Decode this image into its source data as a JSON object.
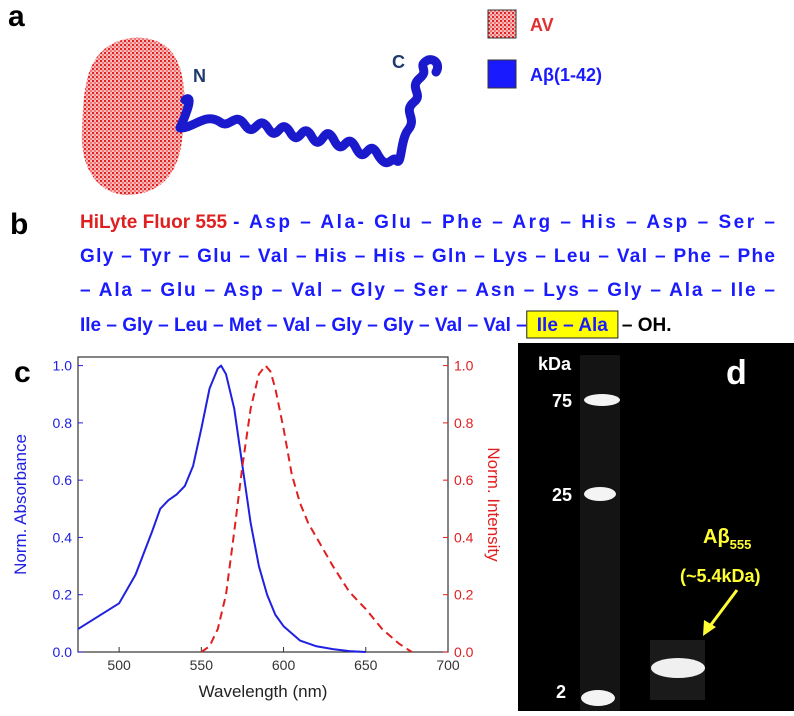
{
  "panels": {
    "a": "a",
    "b": "b",
    "c": "c",
    "d": "d"
  },
  "structure": {
    "n_label": "N",
    "c_label": "C",
    "legend": [
      {
        "label": "AV",
        "color": "#e03030"
      },
      {
        "label": "Aβ(1-42)",
        "color": "#1a1aff"
      }
    ]
  },
  "sequence": {
    "dye": "HiLyte Fluor 555",
    "lines": [
      "- Asp – Ala- Glu – Phe – Arg – His – Asp – Ser –",
      "Gly – Tyr – Glu – Val – His – His – Gln – Lys – Leu – Val – Phe – Phe",
      "– Ala – Glu – Asp – Val – Gly – Ser – Asn – Lys – Gly – Ala – Ile –",
      "Ile – Gly – Leu – Met – Val – Gly – Gly – Val – Val –"
    ],
    "highlight": "Ile – Ala",
    "end": "– OH."
  },
  "chart_data": {
    "type": "line",
    "xlabel": "Wavelength (nm)",
    "ylabel": "Norm. Absorbance",
    "y2label": "Norm. Intensity",
    "xlim": [
      475,
      700
    ],
    "xticks": [
      500,
      550,
      600,
      650,
      700
    ],
    "ylim": [
      0,
      1.03
    ],
    "yticks": [
      {
        "value": 0,
        "label": "0.0"
      },
      {
        "value": 0.2,
        "label": "0.2"
      },
      {
        "value": 0.4,
        "label": "0.4"
      },
      {
        "value": 0.6,
        "label": "0.6"
      },
      {
        "value": 0.8,
        "label": "0.8"
      },
      {
        "value": 1,
        "label": "1.0"
      }
    ],
    "y2lim": [
      0,
      1.03
    ],
    "y2ticks": [
      {
        "value": 0,
        "label": "0.0"
      },
      {
        "value": 0.2,
        "label": "0.2"
      },
      {
        "value": 0.4,
        "label": "0.4"
      },
      {
        "value": 0.6,
        "label": "0.6"
      },
      {
        "value": 0.8,
        "label": "0.8"
      },
      {
        "value": 1,
        "label": "1.0"
      }
    ],
    "ycolor": "#2020e0",
    "y2color": "#e02020",
    "series": [
      {
        "color": "#2020e0",
        "dashed": false,
        "x": [
          475,
          500,
          510,
          520,
          525,
          530,
          535,
          540,
          545,
          550,
          555,
          560,
          562,
          565,
          570,
          575,
          580,
          585,
          590,
          595,
          600,
          610,
          620,
          630,
          640,
          650
        ],
        "values": [
          0.08,
          0.17,
          0.27,
          0.42,
          0.5,
          0.53,
          0.55,
          0.58,
          0.65,
          0.78,
          0.92,
          0.99,
          1.0,
          0.97,
          0.85,
          0.65,
          0.45,
          0.3,
          0.2,
          0.13,
          0.09,
          0.04,
          0.02,
          0.01,
          0.003,
          0.0
        ]
      },
      {
        "color": "#e02020",
        "dashed": true,
        "axis": "y2",
        "x": [
          550,
          555,
          560,
          565,
          570,
          575,
          580,
          585,
          589,
          592,
          595,
          600,
          605,
          610,
          615,
          620,
          625,
          630,
          640,
          650,
          660,
          670,
          678
        ],
        "values": [
          0.0,
          0.02,
          0.08,
          0.2,
          0.42,
          0.65,
          0.85,
          0.97,
          1.0,
          0.98,
          0.92,
          0.78,
          0.62,
          0.52,
          0.45,
          0.4,
          0.35,
          0.3,
          0.21,
          0.15,
          0.08,
          0.03,
          0.0
        ]
      }
    ]
  },
  "gel": {
    "unit": "kDa",
    "ladder": [
      "75",
      "25",
      "2"
    ],
    "annotation": "Aβ",
    "annotation_sub": "555",
    "size": "(~5.4kDa)"
  }
}
